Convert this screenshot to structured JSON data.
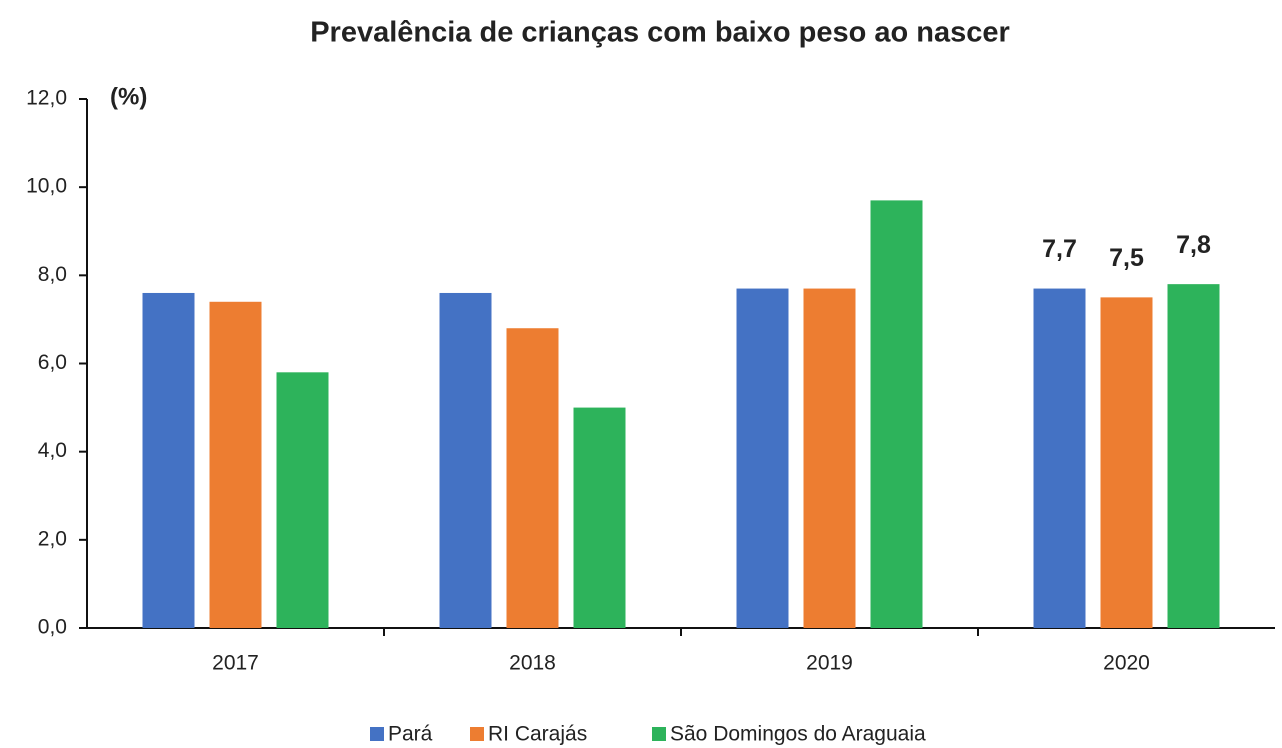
{
  "chart_data": {
    "type": "bar",
    "title": "Prevalência de crianças com baixo peso ao nascer",
    "y_label": "(%)",
    "categories": [
      "2017",
      "2018",
      "2019",
      "2020"
    ],
    "series": [
      {
        "name": "Pará",
        "color": "#4472c4",
        "values": [
          7.6,
          7.6,
          7.7,
          7.7
        ],
        "value_labels": [
          null,
          null,
          null,
          "7,7"
        ]
      },
      {
        "name": "RI Carajás",
        "color": "#ed7d31",
        "values": [
          7.4,
          6.8,
          7.7,
          7.5
        ],
        "value_labels": [
          null,
          null,
          null,
          "7,5"
        ]
      },
      {
        "name": "São Domingos do Araguaia",
        "color": "#2db35b",
        "values": [
          5.8,
          5.0,
          9.7,
          7.8
        ],
        "value_labels": [
          null,
          null,
          null,
          "7,8"
        ]
      }
    ],
    "ylim": [
      0,
      12
    ],
    "yticks": [
      {
        "value": 0,
        "label": "0,0"
      },
      {
        "value": 2,
        "label": "2,0"
      },
      {
        "value": 4,
        "label": "4,0"
      },
      {
        "value": 6,
        "label": "6,0"
      },
      {
        "value": 8,
        "label": "8,0"
      },
      {
        "value": 10,
        "label": "10,0"
      },
      {
        "value": 12,
        "label": "12,0"
      }
    ],
    "grid": false,
    "legend": "bottom"
  }
}
